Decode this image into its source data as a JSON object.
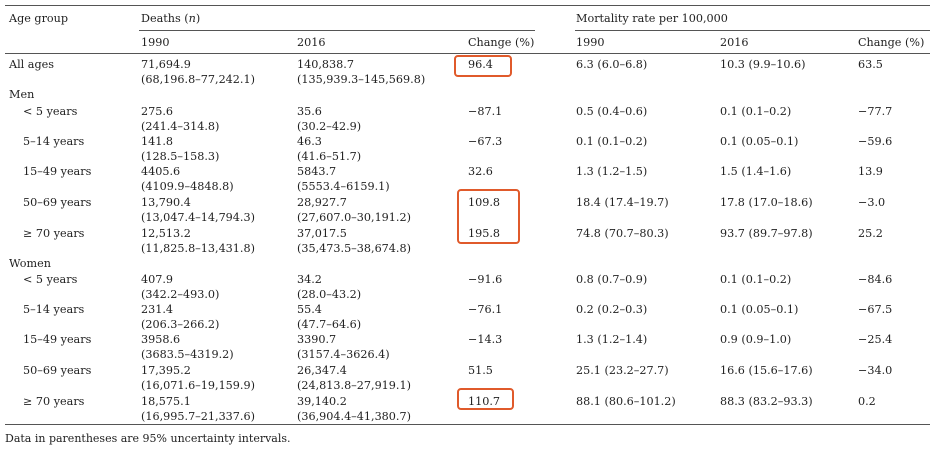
{
  "header": {
    "age_group": "Age group",
    "deaths": "Deaths (",
    "deaths_n": "n",
    "deaths_close": ")",
    "mortality": "Mortality rate per 100,000",
    "year1": "1990",
    "year2": "2016",
    "change": "Change (%)"
  },
  "groups": {
    "men": "Men",
    "women": "Women"
  },
  "rows": [
    {
      "label": "All ages",
      "d1990": "71,694.9",
      "d1990_ci": "(68,196.8–77,242.1)",
      "d2016": "140,838.7",
      "d2016_ci": "(135,939.3–145,569.8)",
      "dchg": "96.4",
      "m1990": "6.3 (6.0–6.8)",
      "m2016": "10.3 (9.9–10.6)",
      "mchg": "63.5"
    },
    {
      "label": "< 5 years",
      "d1990": "275.6",
      "d1990_ci": "(241.4–314.8)",
      "d2016": "35.6",
      "d2016_ci": "(30.2–42.9)",
      "dchg": "−87.1",
      "m1990": "0.5 (0.4–0.6)",
      "m2016": "0.1 (0.1–0.2)",
      "mchg": "−77.7"
    },
    {
      "label": "5–14 years",
      "d1990": "141.8",
      "d1990_ci": "(128.5–158.3)",
      "d2016": "46.3",
      "d2016_ci": "(41.6–51.7)",
      "dchg": "−67.3",
      "m1990": "0.1 (0.1–0.2)",
      "m2016": "0.1 (0.05–0.1)",
      "mchg": "−59.6"
    },
    {
      "label": "15–49 years",
      "d1990": "4405.6",
      "d1990_ci": "(4109.9–4848.8)",
      "d2016": "5843.7",
      "d2016_ci": "(5553.4–6159.1)",
      "dchg": "32.6",
      "m1990": "1.3 (1.2–1.5)",
      "m2016": "1.5 (1.4–1.6)",
      "mchg": "13.9"
    },
    {
      "label": "50–69 years",
      "d1990": "13,790.4",
      "d1990_ci": "(13,047.4–14,794.3)",
      "d2016": "28,927.7",
      "d2016_ci": "(27,607.0–30,191.2)",
      "dchg": "109.8",
      "m1990": "18.4 (17.4–19.7)",
      "m2016": "17.8 (17.0–18.6)",
      "mchg": "−3.0"
    },
    {
      "label": "≥ 70 years",
      "d1990": "12,513.2",
      "d1990_ci": "(11,825.8–13,431.8)",
      "d2016": "37,017.5",
      "d2016_ci": "(35,473.5–38,674.8)",
      "dchg": "195.8",
      "m1990": "74.8 (70.7–80.3)",
      "m2016": "93.7 (89.7–97.8)",
      "mchg": "25.2"
    },
    {
      "label": "< 5 years",
      "d1990": "407.9",
      "d1990_ci": "(342.2–493.0)",
      "d2016": "34.2",
      "d2016_ci": "(28.0–43.2)",
      "dchg": "−91.6",
      "m1990": "0.8 (0.7–0.9)",
      "m2016": "0.1 (0.1–0.2)",
      "mchg": "−84.6"
    },
    {
      "label": "5–14 years",
      "d1990": "231.4",
      "d1990_ci": "(206.3–266.2)",
      "d2016": "55.4",
      "d2016_ci": "(47.7–64.6)",
      "dchg": "−76.1",
      "m1990": "0.2 (0.2–0.3)",
      "m2016": "0.1 (0.05–0.1)",
      "mchg": "−67.5"
    },
    {
      "label": "15–49 years",
      "d1990": "3958.6",
      "d1990_ci": "(3683.5–4319.2)",
      "d2016": "3390.7",
      "d2016_ci": "(3157.4–3626.4)",
      "dchg": "−14.3",
      "m1990": "1.3 (1.2–1.4)",
      "m2016": "0.9 (0.9–1.0)",
      "mchg": "−25.4"
    },
    {
      "label": "50–69 years",
      "d1990": "17,395.2",
      "d1990_ci": "(16,071.6–19,159.9)",
      "d2016": "26,347.4",
      "d2016_ci": "(24,813.8–27,919.1)",
      "dchg": "51.5",
      "m1990": "25.1 (23.2–27.7)",
      "m2016": "16.6 (15.6–17.6)",
      "mchg": "−34.0"
    },
    {
      "label": "≥ 70 years",
      "d1990": "18,575.1",
      "d1990_ci": "(16,995.7–21,337.6)",
      "d2016": "39,140.2",
      "d2016_ci": "(36,904.4–41,380.7)",
      "dchg": "110.7",
      "m1990": "88.1 (80.6–101.2)",
      "m2016": "88.3 (83.2–93.3)",
      "mchg": "0.2"
    }
  ],
  "footnote": "Data in parentheses are 95% uncertainty intervals.",
  "highlight_color": "#e05a2b"
}
